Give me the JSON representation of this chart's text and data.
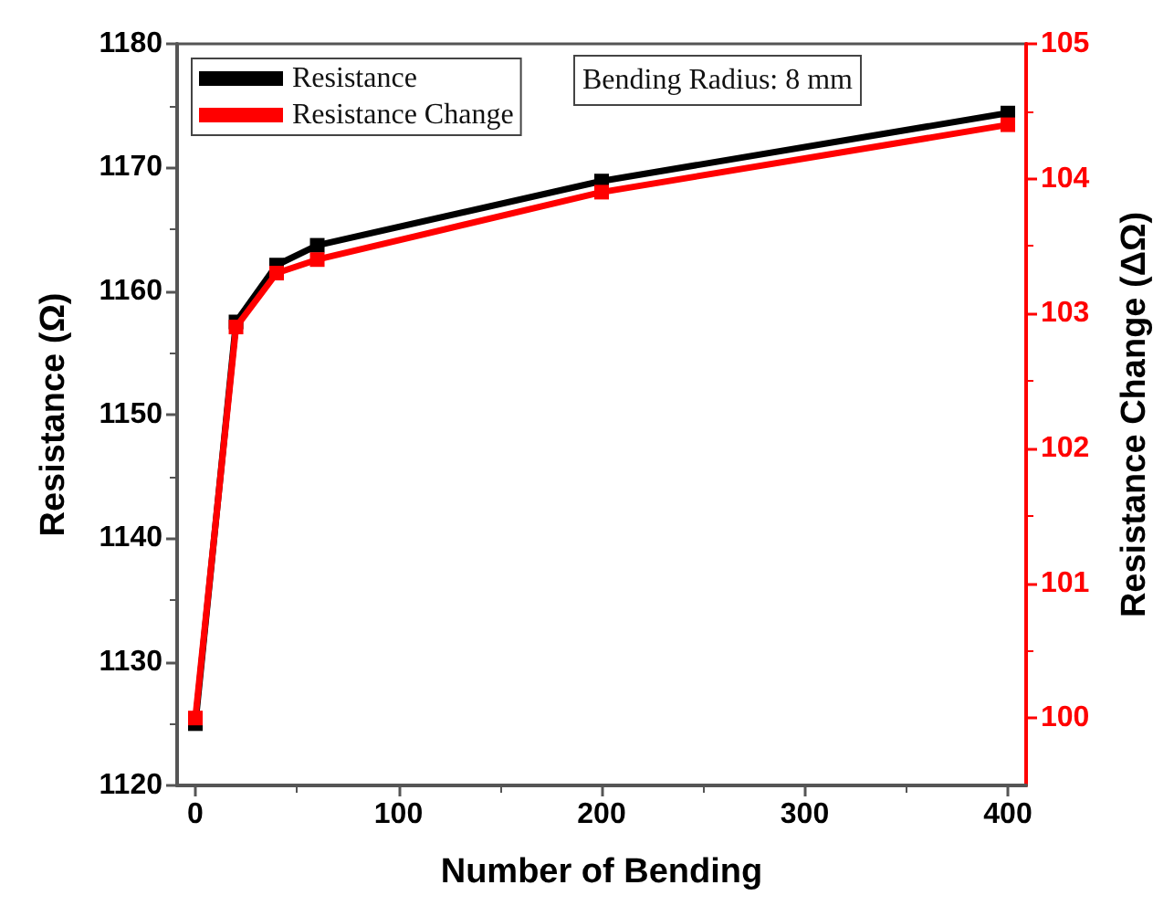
{
  "chart_data": {
    "type": "line",
    "xlabel": "Number of Bending",
    "ylabel": "Resistance (Ω)",
    "y2label": "Resistance Change (ΔΩ)",
    "x": [
      0,
      20,
      40,
      60,
      200,
      400
    ],
    "series": [
      {
        "name": "Resistance",
        "color": "#000000",
        "values": [
          1125.0,
          1157.5,
          1162.1,
          1163.7,
          1168.9,
          1174.4
        ]
      },
      {
        "name": "Resistance Change",
        "color": "#ff0000",
        "axis": "y2",
        "values": [
          100.0,
          102.9,
          103.3,
          103.4,
          103.9,
          104.4
        ]
      }
    ],
    "xlim": [
      -9,
      409
    ],
    "xticks": [
      0,
      100,
      200,
      300,
      400
    ],
    "ylim": [
      1120,
      1180
    ],
    "yticks": [
      1120,
      1130,
      1140,
      1150,
      1160,
      1170,
      1180
    ],
    "y2lim": [
      99.5,
      105
    ],
    "y2ticks": [
      100,
      101,
      102,
      103,
      104,
      105
    ],
    "annotations": [
      "Bending Radius: 8 mm"
    ],
    "legend": "top left",
    "marker": "square",
    "line_style": "solid",
    "grid": false
  }
}
